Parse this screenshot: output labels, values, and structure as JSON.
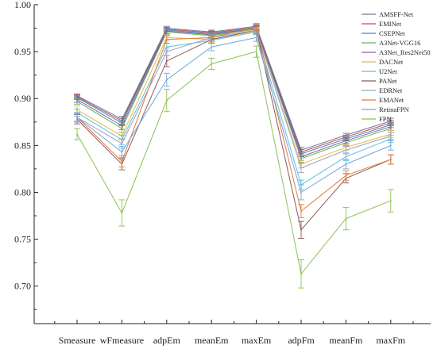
{
  "chart_data": {
    "type": "line",
    "categories": [
      "Smeasure",
      "wFmeasure",
      "adpEm",
      "meanEm",
      "maxEm",
      "adpFm",
      "meanFm",
      "maxFm"
    ],
    "ylim": [
      0.66,
      1.0
    ],
    "yticks": [
      "1.00",
      "0.95",
      "0.90",
      "0.85",
      "0.80",
      "0.75",
      "0.70"
    ],
    "legend_position": "top-right",
    "error_bars": true,
    "series": [
      {
        "name": "AMSFF-Net",
        "color": "#6b7b9c",
        "values": [
          0.903,
          0.878,
          0.975,
          0.971,
          0.977,
          0.845,
          0.861,
          0.876
        ],
        "err": [
          0.002,
          0.003,
          0.002,
          0.002,
          0.002,
          0.003,
          0.002,
          0.003
        ]
      },
      {
        "name": "EMINet",
        "color": "#c0504d",
        "values": [
          0.902,
          0.876,
          0.974,
          0.97,
          0.976,
          0.843,
          0.859,
          0.874
        ],
        "err": [
          0.002,
          0.003,
          0.002,
          0.002,
          0.002,
          0.003,
          0.002,
          0.003
        ]
      },
      {
        "name": "CSEPNet",
        "color": "#4f81bd",
        "values": [
          0.901,
          0.874,
          0.973,
          0.969,
          0.975,
          0.841,
          0.857,
          0.872
        ],
        "err": [
          0.002,
          0.003,
          0.002,
          0.002,
          0.002,
          0.003,
          0.002,
          0.003
        ]
      },
      {
        "name": "A3Net-VGG16",
        "color": "#5cb85c",
        "values": [
          0.897,
          0.868,
          0.971,
          0.967,
          0.974,
          0.836,
          0.853,
          0.868
        ],
        "err": [
          0.003,
          0.004,
          0.003,
          0.003,
          0.003,
          0.004,
          0.003,
          0.004
        ]
      },
      {
        "name": "A3Net_Res2Net50",
        "color": "#8064a2",
        "values": [
          0.899,
          0.871,
          0.972,
          0.968,
          0.975,
          0.838,
          0.855,
          0.87
        ],
        "err": [
          0.003,
          0.004,
          0.003,
          0.003,
          0.003,
          0.004,
          0.003,
          0.004
        ]
      },
      {
        "name": "DACNet",
        "color": "#e8b84a",
        "values": [
          0.888,
          0.86,
          0.965,
          0.963,
          0.972,
          0.83,
          0.848,
          0.862
        ],
        "err": [
          0.004,
          0.004,
          0.003,
          0.003,
          0.003,
          0.004,
          0.003,
          0.004
        ]
      },
      {
        "name": "U2Net",
        "color": "#5bc0de",
        "values": [
          0.885,
          0.856,
          0.955,
          0.962,
          0.971,
          0.808,
          0.838,
          0.857
        ],
        "err": [
          0.004,
          0.005,
          0.004,
          0.003,
          0.003,
          0.005,
          0.004,
          0.004
        ]
      },
      {
        "name": "PANet",
        "color": "#8b5a5a",
        "values": [
          0.878,
          0.83,
          0.94,
          0.963,
          0.973,
          0.76,
          0.815,
          0.835
        ],
        "err": [
          0.005,
          0.006,
          0.006,
          0.004,
          0.004,
          0.009,
          0.005,
          0.005
        ]
      },
      {
        "name": "EDRNet",
        "color": "#a0a0c8",
        "values": [
          0.88,
          0.852,
          0.95,
          0.965,
          0.973,
          0.826,
          0.845,
          0.86
        ],
        "err": [
          0.004,
          0.005,
          0.004,
          0.003,
          0.003,
          0.005,
          0.004,
          0.004
        ]
      },
      {
        "name": "EMANet",
        "color": "#e07b39",
        "values": [
          0.88,
          0.833,
          0.963,
          0.965,
          0.976,
          0.78,
          0.818,
          0.835
        ],
        "err": [
          0.005,
          0.006,
          0.004,
          0.004,
          0.004,
          0.007,
          0.005,
          0.005
        ]
      },
      {
        "name": "RetinaFPN",
        "color": "#6fa8dc",
        "values": [
          0.88,
          0.843,
          0.92,
          0.955,
          0.965,
          0.8,
          0.83,
          0.85
        ],
        "err": [
          0.005,
          0.006,
          0.007,
          0.004,
          0.004,
          0.008,
          0.005,
          0.005
        ]
      },
      {
        "name": "FPN",
        "color": "#8cc152",
        "values": [
          0.862,
          0.778,
          0.898,
          0.937,
          0.95,
          0.713,
          0.772,
          0.791
        ],
        "err": [
          0.006,
          0.014,
          0.012,
          0.006,
          0.006,
          0.015,
          0.012,
          0.012
        ]
      }
    ]
  }
}
